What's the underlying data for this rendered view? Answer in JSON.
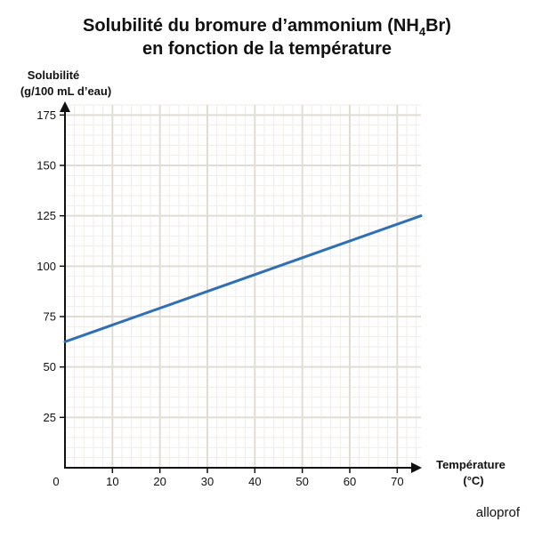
{
  "chart_data": {
    "type": "line",
    "title_line1_prefix": "Solubilité du bromure d’ammonium (NH",
    "title_subscript": "4",
    "title_line1_suffix": "Br)",
    "title_line2": "en fonction de la température",
    "ylabel_line1": "Solubilité",
    "ylabel_line2": "(g/100 mL d’eau)",
    "xlabel_line1": "Température",
    "xlabel_line2": "(°C)",
    "origin_label": "0",
    "x_ticks": [
      10,
      20,
      30,
      40,
      50,
      60,
      70
    ],
    "y_ticks": [
      25,
      50,
      75,
      100,
      125,
      150,
      175
    ],
    "xlim": [
      0,
      75
    ],
    "ylim": [
      0,
      180
    ],
    "grid": true,
    "series": [
      {
        "color": "#2f6fb8",
        "points": [
          [
            0,
            62.5
          ],
          [
            75,
            125
          ]
        ]
      }
    ]
  },
  "brand": "alloprof",
  "colors": {
    "major_grid": "#e2ddd4",
    "minor_grid": "#f1eee9",
    "axis": "#111111"
  }
}
